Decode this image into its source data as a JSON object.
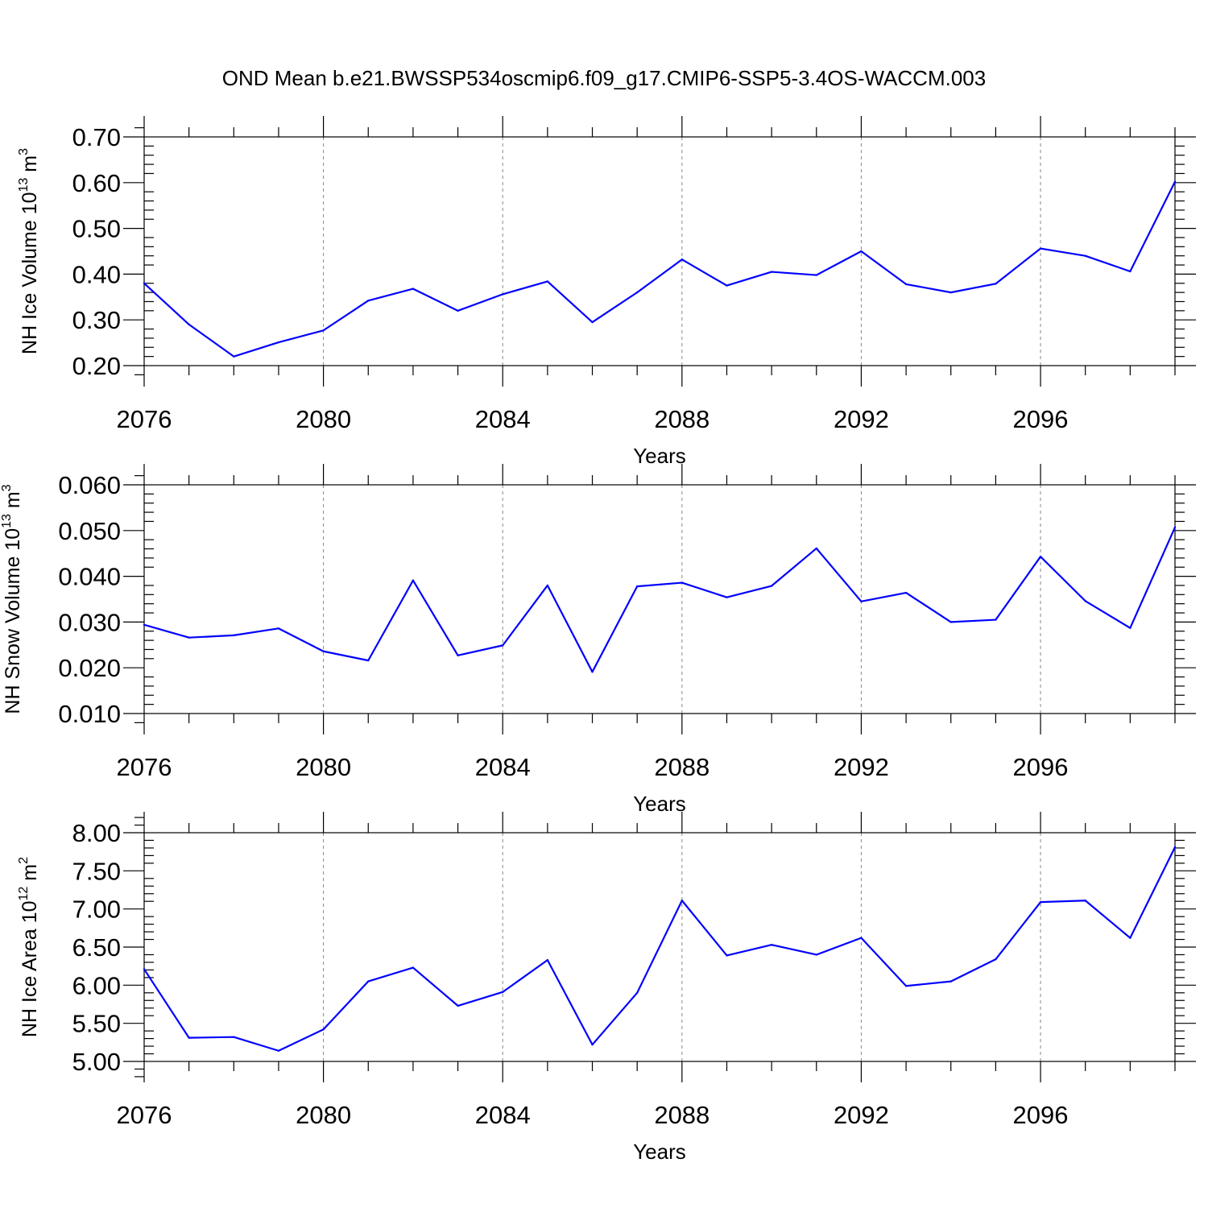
{
  "figure": {
    "title": "OND Mean b.e21.BWSSP534oscmip6.f09_g17.CMIP6-SSP5-3.4OS-WACCM.003",
    "line_color": "#0000ff"
  },
  "chart_data": [
    {
      "type": "line",
      "xlabel": "Years",
      "ylabel": {
        "prefix": "NH Ice Volume 10",
        "exp": "13",
        "mid": " m",
        "unit_exp": "3"
      },
      "xlim": [
        2076,
        2099
      ],
      "ylim": [
        0.2,
        0.7
      ],
      "x_ticks": [
        "2076",
        "2080",
        "2084",
        "2088",
        "2092",
        "2096"
      ],
      "y_ticks": [
        "0.20",
        "0.30",
        "0.40",
        "0.50",
        "0.60",
        "0.70"
      ],
      "x": [
        2076,
        2077,
        2078,
        2079,
        2080,
        2081,
        2082,
        2083,
        2084,
        2085,
        2086,
        2087,
        2088,
        2089,
        2090,
        2091,
        2092,
        2093,
        2094,
        2095,
        2096,
        2097,
        2098,
        2099
      ],
      "values": [
        0.38,
        0.29,
        0.22,
        0.251,
        0.277,
        0.342,
        0.368,
        0.32,
        0.356,
        0.384,
        0.295,
        0.36,
        0.432,
        0.375,
        0.405,
        0.398,
        0.45,
        0.378,
        0.36,
        0.379,
        0.456,
        0.44,
        0.406,
        0.602
      ]
    },
    {
      "type": "line",
      "xlabel": "Years",
      "ylabel": {
        "prefix": "NH Snow Volume 10",
        "exp": "13",
        "mid": " m",
        "unit_exp": "3"
      },
      "xlim": [
        2076,
        2099
      ],
      "ylim": [
        0.01,
        0.06
      ],
      "x_ticks": [
        "2076",
        "2080",
        "2084",
        "2088",
        "2092",
        "2096"
      ],
      "y_ticks": [
        "0.010",
        "0.020",
        "0.030",
        "0.040",
        "0.050",
        "0.060"
      ],
      "x": [
        2076,
        2077,
        2078,
        2079,
        2080,
        2081,
        2082,
        2083,
        2084,
        2085,
        2086,
        2087,
        2088,
        2089,
        2090,
        2091,
        2092,
        2093,
        2094,
        2095,
        2096,
        2097,
        2098,
        2099
      ],
      "values": [
        0.0294,
        0.0266,
        0.0271,
        0.0286,
        0.0236,
        0.0216,
        0.0391,
        0.0227,
        0.0249,
        0.038,
        0.0191,
        0.0378,
        0.0386,
        0.0354,
        0.0379,
        0.0461,
        0.0345,
        0.0364,
        0.03,
        0.0305,
        0.0443,
        0.0346,
        0.0287,
        0.0507
      ]
    },
    {
      "type": "line",
      "xlabel": "Years",
      "ylabel": {
        "prefix": "NH Ice Area 10",
        "exp": "12",
        "mid": " m",
        "unit_exp": "2"
      },
      "xlim": [
        2076,
        2099
      ],
      "ylim": [
        5.0,
        8.0
      ],
      "x_ticks": [
        "2076",
        "2080",
        "2084",
        "2088",
        "2092",
        "2096"
      ],
      "y_ticks": [
        "5.00",
        "5.50",
        "6.00",
        "6.50",
        "7.00",
        "7.50",
        "8.00"
      ],
      "x": [
        2076,
        2077,
        2078,
        2079,
        2080,
        2081,
        2082,
        2083,
        2084,
        2085,
        2086,
        2087,
        2088,
        2089,
        2090,
        2091,
        2092,
        2093,
        2094,
        2095,
        2096,
        2097,
        2098,
        2099
      ],
      "values": [
        6.21,
        5.31,
        5.32,
        5.14,
        5.42,
        6.05,
        6.23,
        5.73,
        5.91,
        6.33,
        5.22,
        5.9,
        7.11,
        6.39,
        6.53,
        6.4,
        6.62,
        5.99,
        6.05,
        6.34,
        7.09,
        7.11,
        6.62,
        7.81
      ]
    }
  ]
}
